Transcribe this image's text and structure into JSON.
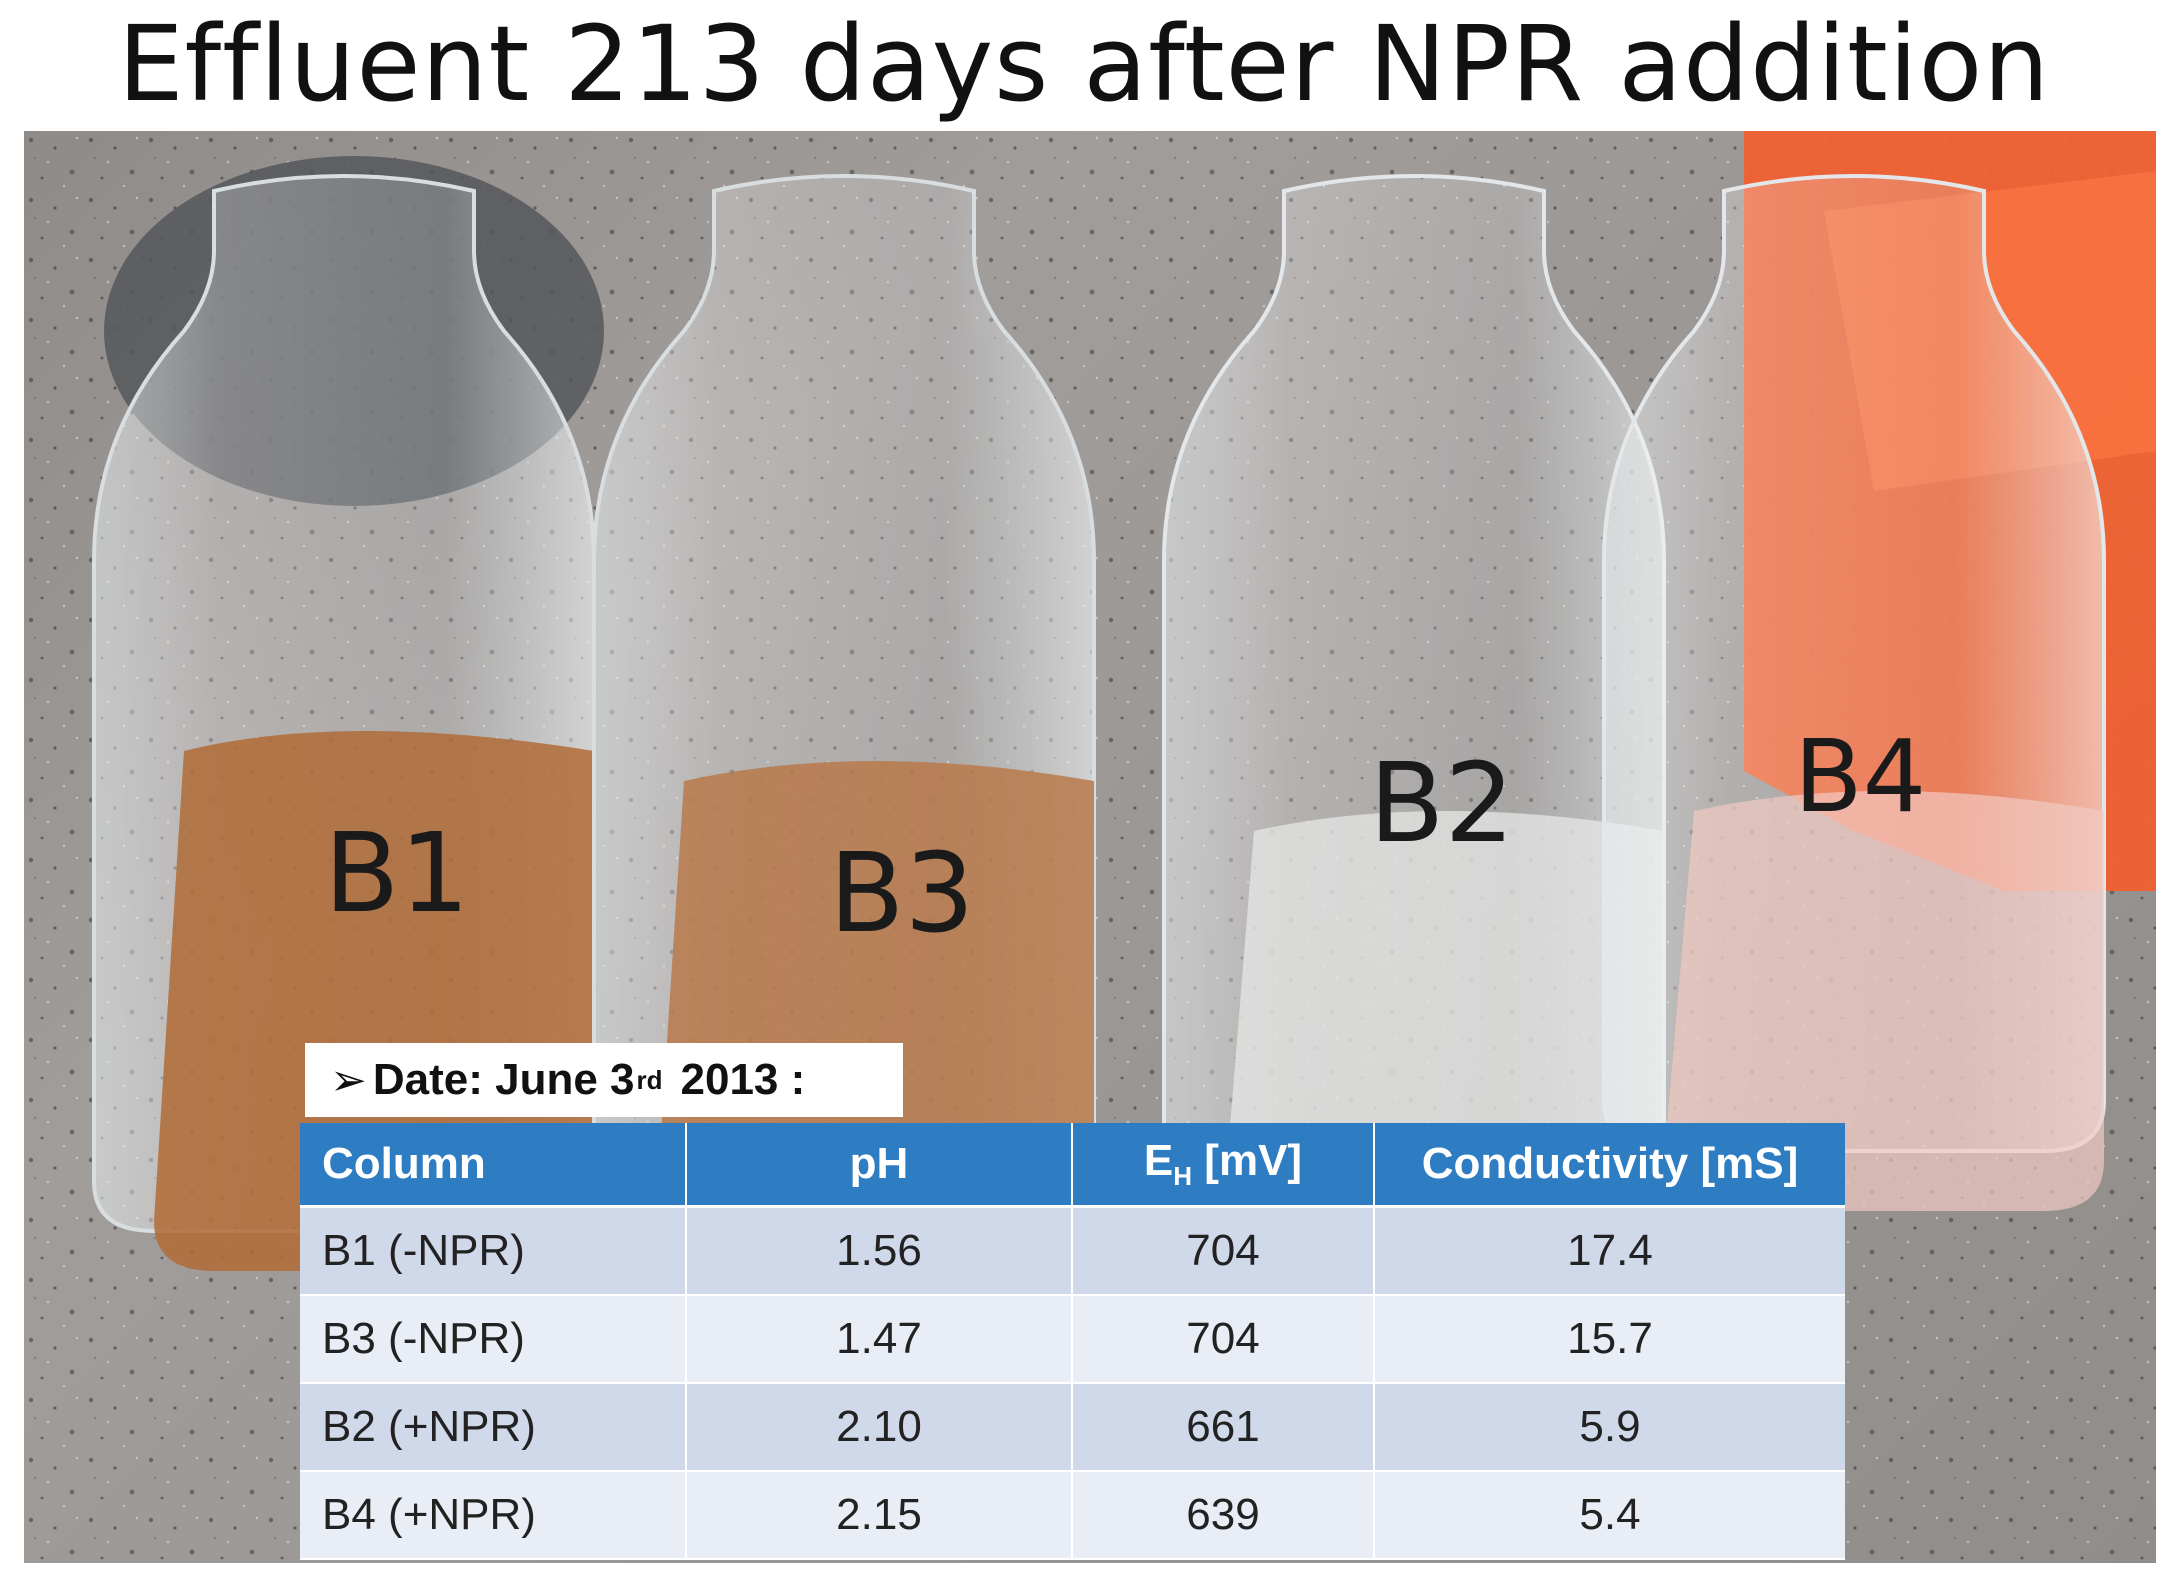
{
  "title": "Effluent 213 days after NPR addition",
  "photo": {
    "bottle_labels": [
      "B1",
      "B3",
      "B2",
      "B4"
    ],
    "liquid_colors": [
      "#b06b36",
      "#b8794a",
      "#e6e7e6",
      "#f2c9c2"
    ]
  },
  "date_box": {
    "arrow": "➢",
    "prefix": "Date: June 3",
    "suffix": "rd",
    "year": "2013 :"
  },
  "table": {
    "headers": {
      "column": "Column",
      "ph": "pH",
      "eh_main": "E",
      "eh_sub": "H",
      "eh_unit": " [mV]",
      "conductivity": "Conductivity [mS]"
    },
    "rows": [
      {
        "column": "B1 (-NPR)",
        "ph": "1.56",
        "eh": "704",
        "conductivity": "17.4"
      },
      {
        "column": "B3 (-NPR)",
        "ph": "1.47",
        "eh": "704",
        "conductivity": "15.7"
      },
      {
        "column": "B2 (+NPR)",
        "ph": "2.10",
        "eh": "661",
        "conductivity": "5.9"
      },
      {
        "column": "B4 (+NPR)",
        "ph": "2.15",
        "eh": "639",
        "conductivity": "5.4"
      }
    ]
  }
}
